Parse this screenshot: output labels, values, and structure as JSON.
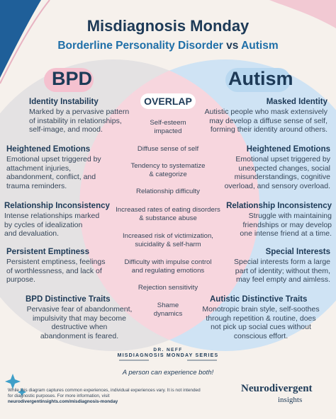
{
  "header": {
    "title": "Misdiagnosis Monday",
    "subtitle_left": "Borderline Personality Disorder",
    "subtitle_vs": "vs",
    "subtitle_right": "Autism"
  },
  "labels": {
    "bpd": "BPD",
    "autism": "Autism",
    "overlap": "OVERLAP"
  },
  "bpd": [
    {
      "title": "Identity Instability",
      "lines": [
        "Marked by a pervasive pattern",
        "of instability in relationships,",
        "self-image, and mood."
      ]
    },
    {
      "title": "Heightened Emotions",
      "lines": [
        "Emotional upset triggered by",
        "attachment injuries,",
        "abandonment, conflict, and",
        "trauma reminders."
      ]
    },
    {
      "title": "Relationship Inconsistency",
      "lines": [
        "Intense relationships marked",
        "by cycles of idealization",
        "and devaluation."
      ]
    },
    {
      "title": "Persistent Emptiness",
      "lines": [
        "Persistent emptiness, feelings",
        "of worthlessness, and lack of",
        "purpose."
      ]
    },
    {
      "title": "BPD Distinctive Traits",
      "lines": [
        "Pervasive fear of abandonment,",
        "impulsivity that may become",
        "destructive when",
        "abandonment is feared."
      ]
    }
  ],
  "autism": [
    {
      "title": "Masked Identity",
      "lines": [
        "Autistic people who mask extensively",
        "may develop a diffuse sense of self,",
        "forming their identity around others."
      ]
    },
    {
      "title": "Heightened Emotions",
      "lines": [
        "Emotional upset triggered by",
        "unexpected changes, social",
        "misunderstandings, cognitive",
        "overload, and sensory overload."
      ]
    },
    {
      "title": "Relationship Inconsistency",
      "lines": [
        "Struggle with maintaining",
        "friendships or may develop",
        "one intense friend at a time."
      ]
    },
    {
      "title": "Special Interests",
      "lines": [
        "Special interests form a large",
        "part of identity; without them,",
        "may feel empty and aimless."
      ]
    },
    {
      "title": "Autistic Distinctive Traits",
      "lines": [
        "Monotropic brain style, self-soothes",
        "through repetition & routine, does",
        "not pick up social cues without",
        "conscious effort."
      ]
    }
  ],
  "overlap": [
    [
      "Self-esteem",
      "impacted"
    ],
    [
      "Diffuse sense of self"
    ],
    [
      "Tendency to systematize",
      "& categorize"
    ],
    [
      "Relationship difficulty"
    ],
    [
      "Increased rates of eating disorders",
      "& substance abuse"
    ],
    [
      "Increased risk of victimization,",
      "suicidality & self-harm"
    ],
    [
      "Difficulty with impulse control",
      "and regulating emotions"
    ],
    [
      "Rejection sensitivity"
    ],
    [
      "Shame",
      "dynamics"
    ]
  ],
  "footer": {
    "series_top": "DR. NEFF",
    "series": "MISDIAGNOSIS MONDAY SERIES",
    "both": "A person can experience both!",
    "disclaimer": "While this diagram captures common experiences, individual experiences vary. It is not intended for diagnostic purposes. For more information, visit",
    "url": "neurodivergentinsights.com/misdiagnosis-monday",
    "logo_main": "Neurodivergent",
    "logo_sub": "insights"
  },
  "colors": {
    "navy": "#1d3a57",
    "accent_blue": "#1f6fa8",
    "bpd_circle": "#e4e2e3",
    "autism_circle": "#cfe3f4",
    "overlap_pink": "#f7d6de",
    "background": "#f6f1ec"
  }
}
